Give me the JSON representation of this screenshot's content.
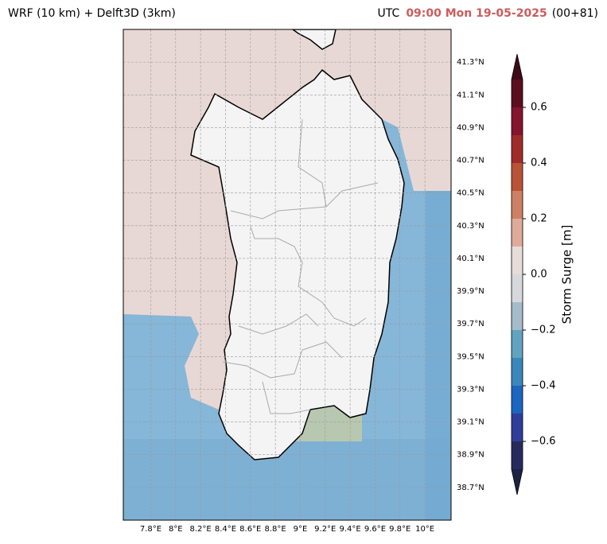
{
  "header": {
    "left_title": "WRF (10 km) + Delft3D (3km)",
    "utc": "UTC",
    "time": "09:00 Mon 19-05-2025",
    "lead": "(00+81)"
  },
  "map": {
    "xlim": [
      7.58,
      10.21
    ],
    "ylim": [
      38.5,
      41.5
    ],
    "xticks": [
      {
        "value": 7.8,
        "label": "7.8°E"
      },
      {
        "value": 8,
        "label": "8°E"
      },
      {
        "value": 8.2,
        "label": "8.2°E"
      },
      {
        "value": 8.4,
        "label": "8.4°E"
      },
      {
        "value": 8.6,
        "label": "8.6°E"
      },
      {
        "value": 8.8,
        "label": "8.8°E"
      },
      {
        "value": 9,
        "label": "9°E"
      },
      {
        "value": 9.2,
        "label": "9.2°E"
      },
      {
        "value": 9.4,
        "label": "9.4°E"
      },
      {
        "value": 9.6,
        "label": "9.6°E"
      },
      {
        "value": 9.8,
        "label": "9.8°E"
      },
      {
        "value": 10,
        "label": "10°E"
      }
    ],
    "yticks": [
      {
        "value": 41.3,
        "label": "41.3°N"
      },
      {
        "value": 41.1,
        "label": "41.1°N"
      },
      {
        "value": 40.9,
        "label": "40.9°N"
      },
      {
        "value": 40.7,
        "label": "40.7°N"
      },
      {
        "value": 40.5,
        "label": "40.5°N"
      },
      {
        "value": 40.3,
        "label": "40.3°N"
      },
      {
        "value": 40.1,
        "label": "40.1°N"
      },
      {
        "value": 39.9,
        "label": "39.9°N"
      },
      {
        "value": 39.7,
        "label": "39.7°N"
      },
      {
        "value": 39.5,
        "label": "39.5°N"
      },
      {
        "value": 39.3,
        "label": "39.3°N"
      },
      {
        "value": 39.1,
        "label": "39.1°N"
      },
      {
        "value": 38.9,
        "label": "38.9°N"
      },
      {
        "value": 38.7,
        "label": "38.7°N"
      }
    ],
    "grid": true
  },
  "colorbar": {
    "label": "Storm Surge [m]",
    "lim": [
      -0.7,
      0.7
    ],
    "bounds": [
      -0.7,
      -0.6,
      -0.5,
      -0.4,
      -0.3,
      -0.2,
      -0.1,
      0,
      0.1,
      0.2,
      0.3,
      0.4,
      0.5,
      0.6,
      0.7
    ],
    "colors": [
      "#272b5c",
      "#2f3e99",
      "#1a66c0",
      "#3a87bd",
      "#62a3c0",
      "#a4bccb",
      "#d6d8dc",
      "#e8dcd8",
      "#dfaa9a",
      "#cf7f65",
      "#b95237",
      "#a02c2a",
      "#85142c",
      "#5c0e1f"
    ],
    "under_color": "#1e2245",
    "over_color": "#3f0a17",
    "ticks": [
      {
        "value": -0.6,
        "label": "−0.6"
      },
      {
        "value": -0.4,
        "label": "−0.4"
      },
      {
        "value": -0.2,
        "label": "−0.2"
      },
      {
        "value": 0,
        "label": "0.0"
      },
      0.2,
      0.4,
      0.6
    ]
  }
}
